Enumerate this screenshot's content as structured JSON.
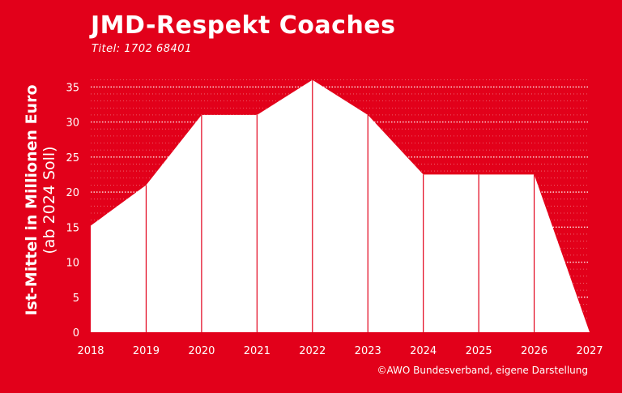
{
  "chart_data": {
    "type": "area",
    "title": "JMD-Respekt Coaches",
    "subtitle": "Titel: 1702 68401",
    "ylabel": "Ist-Mittel in Millionen Euro",
    "ylabel_note": "(ab 2024 Soll)",
    "xlabel": "",
    "source": "©AWO Bundesverband, eigene Darstellung",
    "x": [
      "2018",
      "2019",
      "2020",
      "2021",
      "2022",
      "2023",
      "2024",
      "2025",
      "2026",
      "2027"
    ],
    "values": [
      15.2,
      21,
      31,
      31,
      36,
      31,
      22.5,
      22.5,
      22.5,
      0
    ],
    "yticks": [
      0,
      5,
      10,
      15,
      20,
      25,
      30,
      35
    ],
    "ylim": [
      0,
      37
    ],
    "grid": true,
    "colors": {
      "background": "#e2001a",
      "area": "#ffffff"
    }
  }
}
